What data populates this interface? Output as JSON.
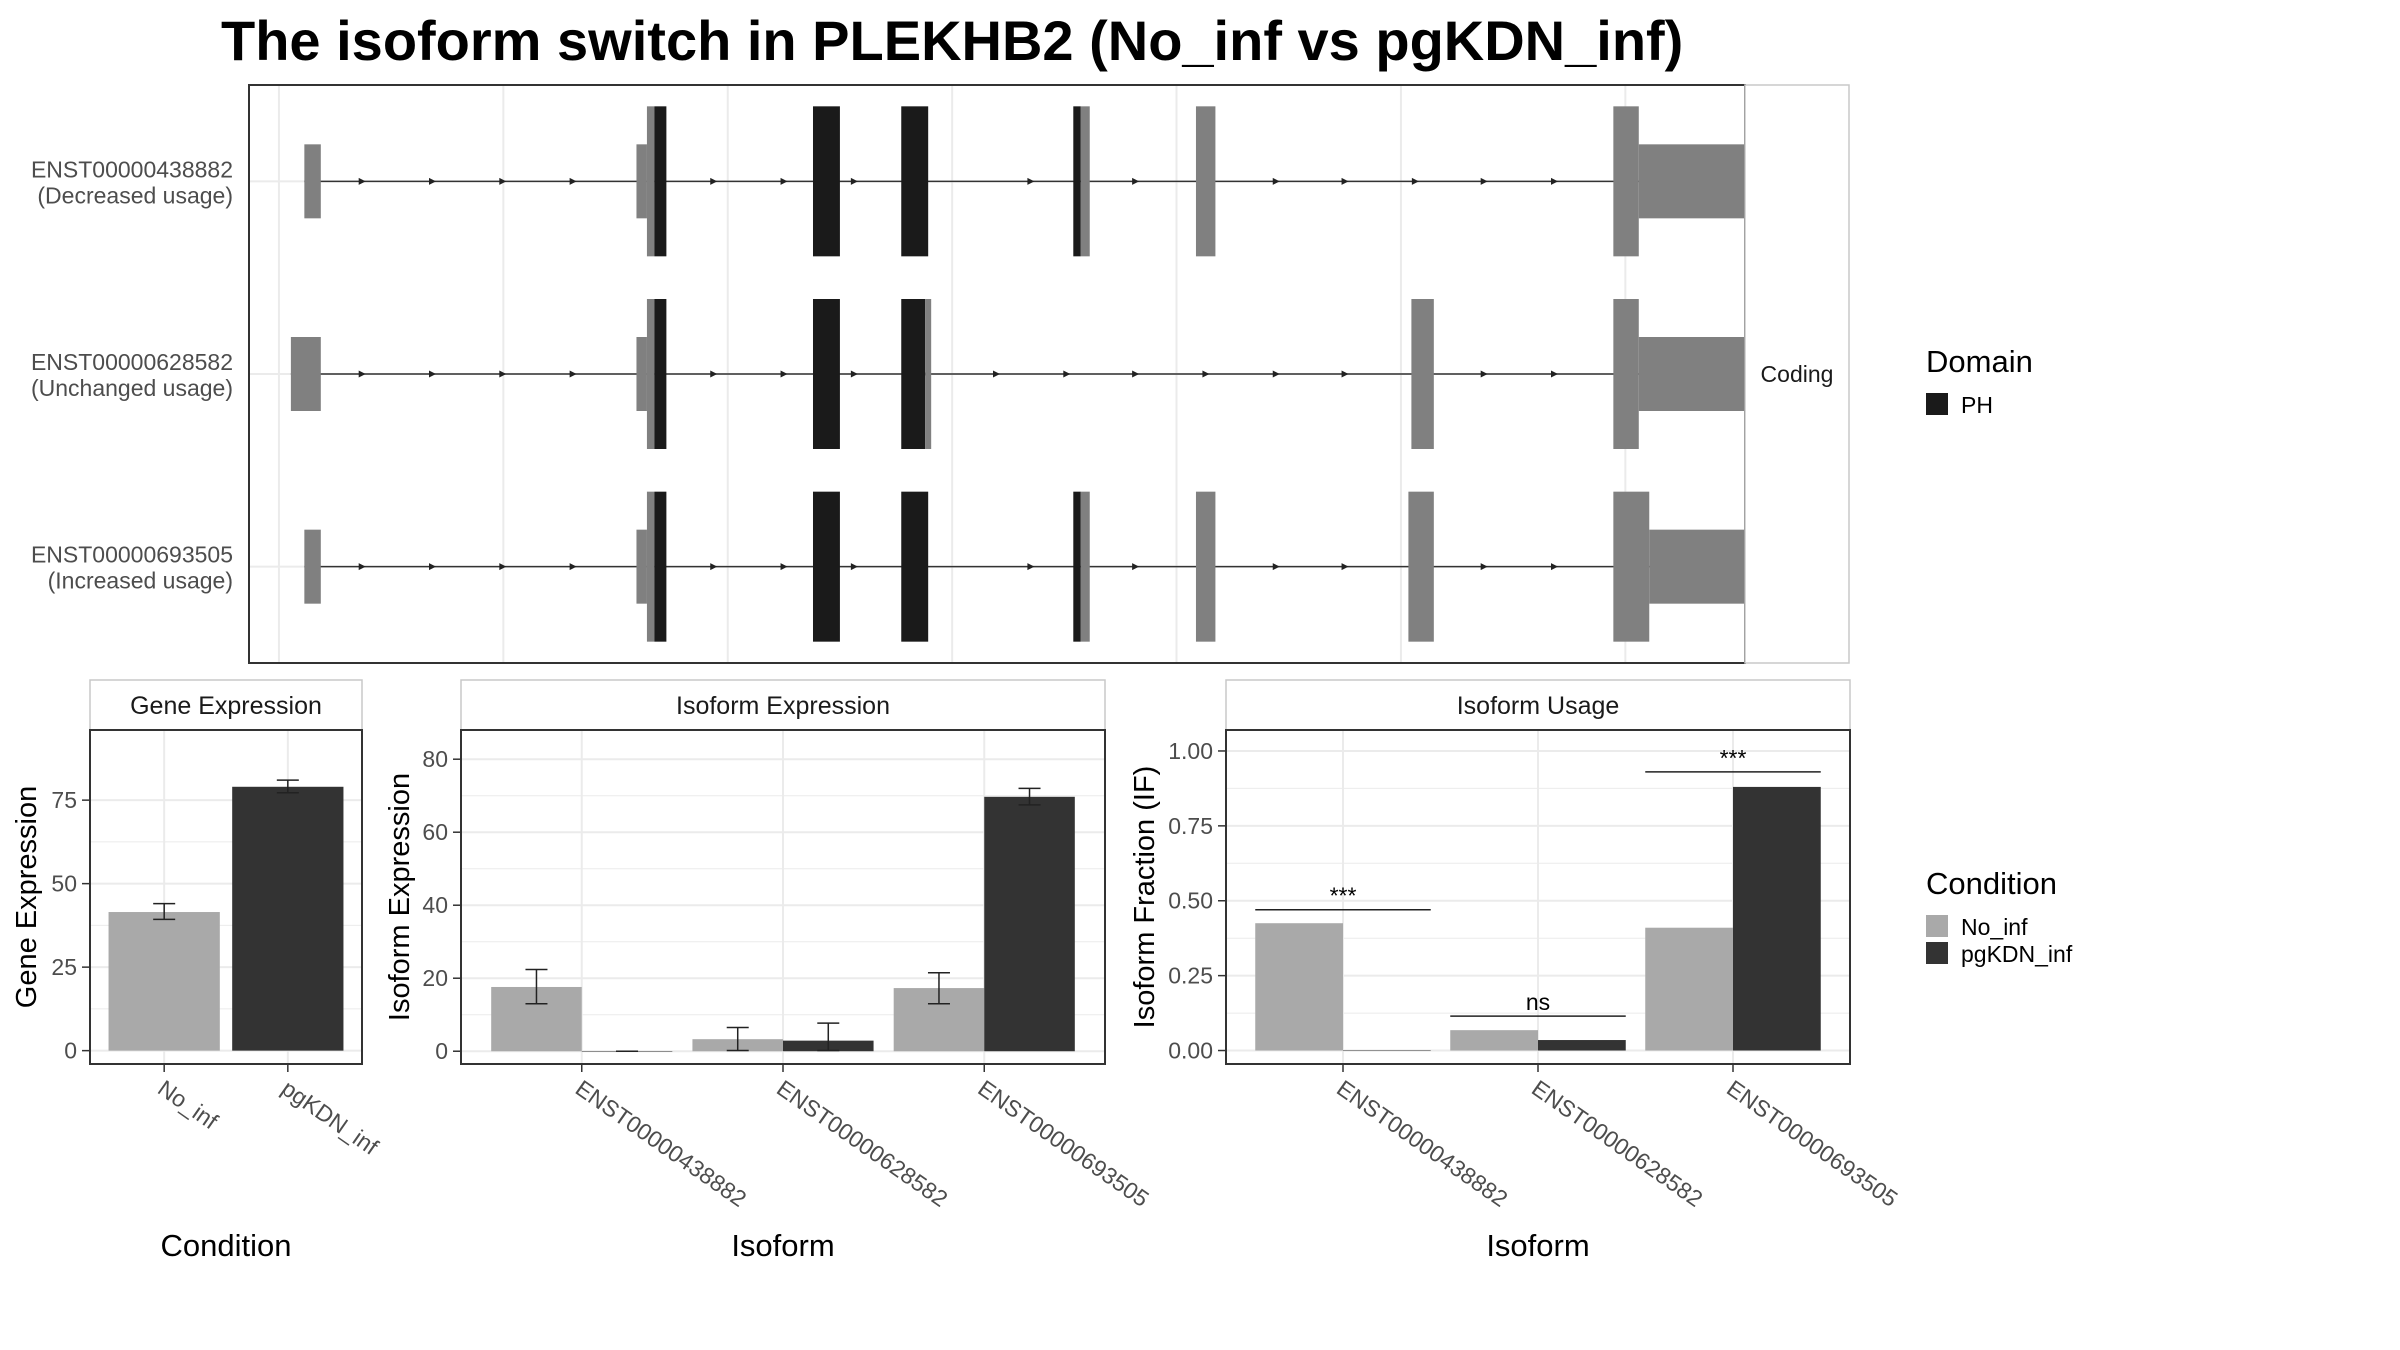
{
  "title": "The isoform switch in PLEKHB2 (No_inf vs pgKDN_inf)",
  "colors": {
    "utr": "#808080",
    "domain_ph": "#1a1a1a",
    "no_inf": "#a9a9a9",
    "pgkdn_inf": "#333333",
    "grid": "#ebebeb",
    "panel_border": "#333333",
    "strip_border": "#c8c8c8"
  },
  "structure": {
    "strip_label": "Coding",
    "x_range": [
      0,
      100
    ],
    "gridlines": [
      2,
      17,
      32,
      47,
      62,
      77,
      92
    ],
    "transcripts": [
      {
        "id": "ENST00000438882",
        "usage": "(Decreased usage)",
        "line": [
          3.7,
          96.3
        ],
        "arrows": [
          7.6,
          12.3,
          17,
          21.7,
          26.4,
          31.1,
          35.8,
          40.5,
          45.2,
          52.3,
          59.3,
          64,
          68.7,
          73.3,
          78,
          82.6,
          87.3,
          91.8
        ],
        "exons": [
          {
            "start": 3.7,
            "end": 4.8,
            "kind": "utr"
          },
          {
            "start": 25.9,
            "end": 26.6,
            "kind": "utr"
          },
          {
            "start": 26.6,
            "end": 27.1,
            "kind": "cds"
          },
          {
            "start": 27.1,
            "end": 27.9,
            "kind": "ph"
          },
          {
            "start": 37.7,
            "end": 39.5,
            "kind": "ph"
          },
          {
            "start": 43.6,
            "end": 45.4,
            "kind": "ph"
          },
          {
            "start": 55.1,
            "end": 55.6,
            "kind": "ph"
          },
          {
            "start": 55.6,
            "end": 56.2,
            "kind": "cds"
          },
          {
            "start": 63.3,
            "end": 64.6,
            "kind": "cds"
          },
          {
            "start": 91.2,
            "end": 92.9,
            "kind": "cds"
          },
          {
            "start": 92.9,
            "end": 101.8,
            "kind": "utr"
          }
        ]
      },
      {
        "id": "ENST00000628582",
        "usage": "(Unchanged usage)",
        "line": [
          2.8,
          96.3
        ],
        "arrows": [
          7.6,
          12.3,
          17,
          21.7,
          26.4,
          31.1,
          35.8,
          40.5,
          45.2,
          50,
          54.7,
          59.3,
          64,
          68.7,
          73.3,
          78,
          82.6,
          87.3,
          91.8
        ],
        "exons": [
          {
            "start": 2.8,
            "end": 4.8,
            "kind": "utr"
          },
          {
            "start": 25.9,
            "end": 26.6,
            "kind": "utr"
          },
          {
            "start": 26.6,
            "end": 27.1,
            "kind": "cds"
          },
          {
            "start": 27.1,
            "end": 27.9,
            "kind": "ph"
          },
          {
            "start": 37.7,
            "end": 39.5,
            "kind": "ph"
          },
          {
            "start": 43.6,
            "end": 45.2,
            "kind": "ph"
          },
          {
            "start": 45.2,
            "end": 45.6,
            "kind": "cds"
          },
          {
            "start": 77.7,
            "end": 79.2,
            "kind": "cds"
          },
          {
            "start": 91.2,
            "end": 92.9,
            "kind": "cds"
          },
          {
            "start": 92.9,
            "end": 101.8,
            "kind": "utr"
          }
        ]
      },
      {
        "id": "ENST00000693505",
        "usage": "(Increased usage)",
        "line": [
          3.7,
          96.3
        ],
        "arrows": [
          7.6,
          12.3,
          17,
          21.7,
          26.4,
          31.1,
          35.8,
          40.5,
          45.2,
          52.3,
          59.3,
          64,
          68.7,
          73.3,
          78,
          82.6,
          87.3,
          91.8
        ],
        "exons": [
          {
            "start": 3.7,
            "end": 4.8,
            "kind": "utr"
          },
          {
            "start": 25.9,
            "end": 26.6,
            "kind": "utr"
          },
          {
            "start": 26.6,
            "end": 27.1,
            "kind": "cds"
          },
          {
            "start": 27.1,
            "end": 27.9,
            "kind": "ph"
          },
          {
            "start": 37.7,
            "end": 39.5,
            "kind": "ph"
          },
          {
            "start": 43.6,
            "end": 45.4,
            "kind": "ph"
          },
          {
            "start": 55.1,
            "end": 55.6,
            "kind": "ph"
          },
          {
            "start": 55.6,
            "end": 56.2,
            "kind": "cds"
          },
          {
            "start": 63.3,
            "end": 64.6,
            "kind": "cds"
          },
          {
            "start": 77.5,
            "end": 79.2,
            "kind": "cds"
          },
          {
            "start": 91.2,
            "end": 93.6,
            "kind": "cds"
          },
          {
            "start": 93.6,
            "end": 101.8,
            "kind": "utr"
          }
        ]
      }
    ]
  },
  "legend_domain": {
    "title": "Domain",
    "items": [
      {
        "label": "PH",
        "color": "#1a1a1a"
      }
    ]
  },
  "legend_condition": {
    "title": "Condition",
    "items": [
      {
        "label": "No_inf",
        "color": "#a9a9a9"
      },
      {
        "label": "pgKDN_inf",
        "color": "#333333"
      }
    ]
  },
  "chart_data": [
    {
      "type": "bar",
      "title": "Gene Expression",
      "xlabel": "Condition",
      "ylabel": "Gene Expression",
      "categories": [
        "No_inf",
        "pgKDN_inf"
      ],
      "values": [
        41.5,
        79
      ],
      "errors": [
        [
          39.3,
          44
        ],
        [
          77.2,
          81
        ]
      ],
      "ylim": [
        -4,
        96
      ],
      "yticks": [
        0,
        25,
        50,
        75
      ],
      "grid": true
    },
    {
      "type": "bar",
      "title": "Isoform Expression",
      "xlabel": "Isoform",
      "ylabel": "Isoform Expression",
      "categories": [
        "ENST00000438882",
        "ENST00000628582",
        "ENST00000693505"
      ],
      "series": [
        {
          "name": "No_inf",
          "values": [
            17.6,
            3.3,
            17.3
          ],
          "errors": [
            [
              13,
              22.4
            ],
            [
              0.2,
              6.5
            ],
            [
              13,
              21.5
            ]
          ]
        },
        {
          "name": "pgKDN_inf",
          "values": [
            0,
            2.9,
            69.7
          ],
          "errors": [
            [
              0,
              0
            ],
            [
              0.2,
              7.7
            ],
            [
              67.5,
              72
            ]
          ]
        }
      ],
      "ylim": [
        -3.5,
        88
      ],
      "yticks": [
        0,
        20,
        40,
        60,
        80
      ],
      "grid": true
    },
    {
      "type": "bar",
      "title": "Isoform Usage",
      "xlabel": "Isoform",
      "ylabel": "Isoform Fraction (IF)",
      "categories": [
        "ENST00000438882",
        "ENST00000628582",
        "ENST00000693505"
      ],
      "series": [
        {
          "name": "No_inf",
          "values": [
            0.425,
            0.068,
            0.41
          ]
        },
        {
          "name": "pgKDN_inf",
          "values": [
            0,
            0.035,
            0.88
          ]
        }
      ],
      "significance": [
        {
          "label": "***",
          "y": 0.47
        },
        {
          "label": "ns",
          "y": 0.115
        },
        {
          "label": "***",
          "y": 0.93
        }
      ],
      "ylim": [
        -0.045,
        1.07
      ],
      "yticks": [
        0.0,
        0.25,
        0.5,
        0.75,
        1.0
      ],
      "ytick_labels": [
        "0.00",
        "0.25",
        "0.50",
        "0.75",
        "1.00"
      ],
      "grid": true
    }
  ]
}
